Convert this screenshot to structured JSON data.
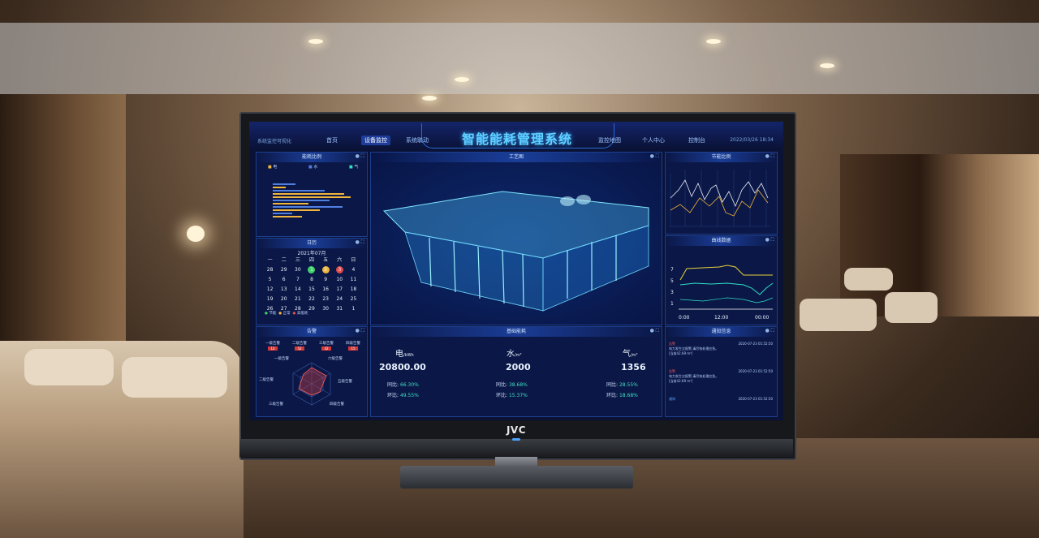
{
  "device": {
    "brand": "JVC"
  },
  "dashboard": {
    "title": "智能能耗管理系统",
    "system_label": "系统监控可视化",
    "nav_left": [
      "首页",
      "设备监控",
      "系统联动"
    ],
    "nav_right": [
      "监控地图",
      "个人中心",
      "控制台"
    ],
    "active_nav": "设备监控",
    "clock": "2022/03/26  18:34"
  },
  "energy_ratio": {
    "title": "能耗比例",
    "legend": [
      "电",
      "水",
      "气"
    ],
    "colors": {
      "electric": "#f0b53c",
      "water": "#4f7fe0",
      "gas": "#2ee0c6"
    }
  },
  "calendar": {
    "title": "日历",
    "month": "2021年07月",
    "weekdays": [
      "一",
      "二",
      "三",
      "四",
      "五",
      "六",
      "日"
    ],
    "days": [
      "28",
      "29",
      "30",
      "1",
      "2",
      "3",
      "4",
      "5",
      "6",
      "7",
      "8",
      "9",
      "10",
      "11",
      "12",
      "13",
      "14",
      "15",
      "16",
      "17",
      "18",
      "19",
      "20",
      "21",
      "22",
      "23",
      "24",
      "25",
      "26",
      "27",
      "28",
      "29",
      "30",
      "31",
      "1"
    ],
    "legend": [
      "节能",
      "正常",
      "高能耗"
    ]
  },
  "alarm": {
    "title": "告警",
    "levels": [
      {
        "label": "一级告警",
        "count": "12"
      },
      {
        "label": "二级告警",
        "count": "52"
      },
      {
        "label": "三级告警",
        "count": "32"
      },
      {
        "label": "四级告警",
        "count": "15"
      }
    ],
    "radar_labels": [
      "一级告警",
      "六级告警",
      "二级告警",
      "五级告警",
      "三级告警",
      "四级告警"
    ]
  },
  "process": {
    "title": "工艺图"
  },
  "base_energy": {
    "title": "基础能耗",
    "items": [
      {
        "name": "电",
        "unit": "/kWh",
        "value": "20800.00",
        "yoy_label": "同比:",
        "yoy": "66.30%",
        "mom_label": "环比:",
        "mom": "49.55%"
      },
      {
        "name": "水",
        "unit": "/m³",
        "value": "2000",
        "yoy_label": "同比:",
        "yoy": "38.68%",
        "mom_label": "环比:",
        "mom": "15.37%"
      },
      {
        "name": "气",
        "unit": "/m³",
        "value": "1356",
        "yoy_label": "同比:",
        "yoy": "28.55%",
        "mom_label": "环比:",
        "mom": "18.68%"
      }
    ]
  },
  "saving_ratio": {
    "title": "节能比例"
  },
  "curve": {
    "title": "曲线数据",
    "y_ticks": [
      "7",
      "5",
      "3",
      "1"
    ],
    "x_ticks": [
      "0:00",
      "12:00",
      "00:00"
    ]
  },
  "notices": {
    "title": "通知信息",
    "items": [
      {
        "tag": "告警",
        "time": "2020-07-23 01:52:50",
        "text": "电力发生欠报警,请尽快处理应急。",
        "detail": "[当前42.69 m³]"
      },
      {
        "tag": "告警",
        "time": "2020-07-23 01:52:50",
        "text": "电力发生欠报警,请尽快处理应急。",
        "detail": "[当前42.69 m³]"
      },
      {
        "tag": "通知",
        "time": "2020-07-23 01:52:50",
        "text": "",
        "detail": ""
      }
    ]
  }
}
